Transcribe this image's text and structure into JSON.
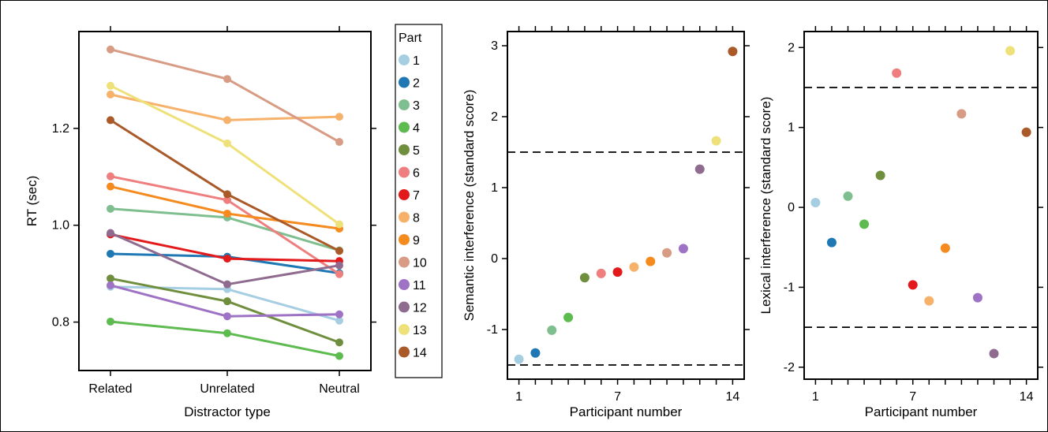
{
  "colors": {
    "1": "#a6cee3",
    "2": "#1f78b4",
    "3": "#7fbf8f",
    "4": "#5dbb4f",
    "5": "#6f8f3f",
    "6": "#ef7e7e",
    "7": "#e31a1c",
    "8": "#f6b26b",
    "9": "#f58a1f",
    "10": "#d89c85",
    "11": "#9e72c4",
    "12": "#8f6c8f",
    "13": "#efe17a",
    "14": "#a95a28"
  },
  "legend": {
    "title": "Part",
    "items": [
      "1",
      "2",
      "3",
      "4",
      "5",
      "6",
      "7",
      "8",
      "9",
      "10",
      "11",
      "12",
      "13",
      "14"
    ]
  },
  "chart_data": [
    {
      "type": "line",
      "xlabel": "Distractor type",
      "ylabel": "RT (sec)",
      "categories": [
        "Related",
        "Unrelated",
        "Neutral"
      ],
      "ylim": [
        0.7,
        1.4
      ],
      "yticks": [
        "0.8",
        "1.0",
        "1.2"
      ],
      "ytick_values": [
        0.8,
        1.0,
        1.2
      ],
      "series": [
        {
          "name": "1",
          "values": [
            0.873,
            0.868,
            0.803
          ]
        },
        {
          "name": "2",
          "values": [
            0.941,
            0.935,
            0.901
          ]
        },
        {
          "name": "3",
          "values": [
            1.034,
            1.016,
            0.948
          ]
        },
        {
          "name": "4",
          "values": [
            0.801,
            0.777,
            0.73
          ]
        },
        {
          "name": "5",
          "values": [
            0.89,
            0.843,
            0.758
          ]
        },
        {
          "name": "6",
          "values": [
            1.101,
            1.052,
            0.899
          ]
        },
        {
          "name": "7",
          "values": [
            0.981,
            0.931,
            0.926
          ]
        },
        {
          "name": "8",
          "values": [
            1.27,
            1.217,
            1.224
          ]
        },
        {
          "name": "9",
          "values": [
            1.08,
            1.024,
            0.993
          ]
        },
        {
          "name": "10",
          "values": [
            1.363,
            1.302,
            1.172
          ]
        },
        {
          "name": "11",
          "values": [
            0.876,
            0.812,
            0.816
          ]
        },
        {
          "name": "12",
          "values": [
            0.984,
            0.878,
            0.917
          ]
        },
        {
          "name": "13",
          "values": [
            1.288,
            1.169,
            1.002
          ]
        },
        {
          "name": "14",
          "values": [
            1.217,
            1.064,
            0.947
          ]
        }
      ]
    },
    {
      "type": "scatter",
      "xlabel": "Participant number",
      "ylabel": "Semantic interference (standard score)",
      "xlim": [
        0.3,
        14.7
      ],
      "ylim": [
        -1.7,
        3.2
      ],
      "xticks": [
        "1",
        "7",
        "14"
      ],
      "xtick_values": [
        1,
        7,
        14
      ],
      "yticks": [
        "-1",
        "0",
        "1",
        "2",
        "3"
      ],
      "ytick_values": [
        -1,
        0,
        1,
        2,
        3
      ],
      "hlines": [
        1.5,
        -1.5
      ],
      "points": [
        {
          "x": 1,
          "y": -1.42,
          "series": "1"
        },
        {
          "x": 2,
          "y": -1.33,
          "series": "2"
        },
        {
          "x": 3,
          "y": -1.01,
          "series": "3"
        },
        {
          "x": 4,
          "y": -0.83,
          "series": "4"
        },
        {
          "x": 5,
          "y": -0.27,
          "series": "5"
        },
        {
          "x": 6,
          "y": -0.21,
          "series": "6"
        },
        {
          "x": 7,
          "y": -0.19,
          "series": "7"
        },
        {
          "x": 8,
          "y": -0.12,
          "series": "8"
        },
        {
          "x": 9,
          "y": -0.04,
          "series": "9"
        },
        {
          "x": 10,
          "y": 0.08,
          "series": "10"
        },
        {
          "x": 11,
          "y": 0.14,
          "series": "11"
        },
        {
          "x": 12,
          "y": 1.26,
          "series": "12"
        },
        {
          "x": 13,
          "y": 1.66,
          "series": "13"
        },
        {
          "x": 14,
          "y": 2.92,
          "series": "14"
        }
      ]
    },
    {
      "type": "scatter",
      "xlabel": "Participant number",
      "ylabel": "Lexical interference (standard score)",
      "xlim": [
        0.3,
        14.7
      ],
      "ylim": [
        -2.15,
        2.2
      ],
      "xticks": [
        "1",
        "7",
        "14"
      ],
      "xtick_values": [
        1,
        7,
        14
      ],
      "yticks": [
        "-2",
        "-1",
        "0",
        "1",
        "2"
      ],
      "ytick_values": [
        -2,
        -1,
        0,
        1,
        2
      ],
      "hlines": [
        1.5,
        -1.5
      ],
      "points": [
        {
          "x": 1,
          "y": 0.06,
          "series": "1"
        },
        {
          "x": 2,
          "y": -0.44,
          "series": "2"
        },
        {
          "x": 3,
          "y": 0.14,
          "series": "3"
        },
        {
          "x": 4,
          "y": -0.21,
          "series": "4"
        },
        {
          "x": 5,
          "y": 0.4,
          "series": "5"
        },
        {
          "x": 6,
          "y": 1.68,
          "series": "6"
        },
        {
          "x": 7,
          "y": -0.97,
          "series": "7"
        },
        {
          "x": 8,
          "y": -1.17,
          "series": "8"
        },
        {
          "x": 9,
          "y": -0.51,
          "series": "9"
        },
        {
          "x": 10,
          "y": 1.17,
          "series": "10"
        },
        {
          "x": 11,
          "y": -1.13,
          "series": "11"
        },
        {
          "x": 12,
          "y": -1.83,
          "series": "12"
        },
        {
          "x": 13,
          "y": 1.96,
          "series": "13"
        },
        {
          "x": 14,
          "y": 0.94,
          "series": "14"
        }
      ]
    }
  ]
}
